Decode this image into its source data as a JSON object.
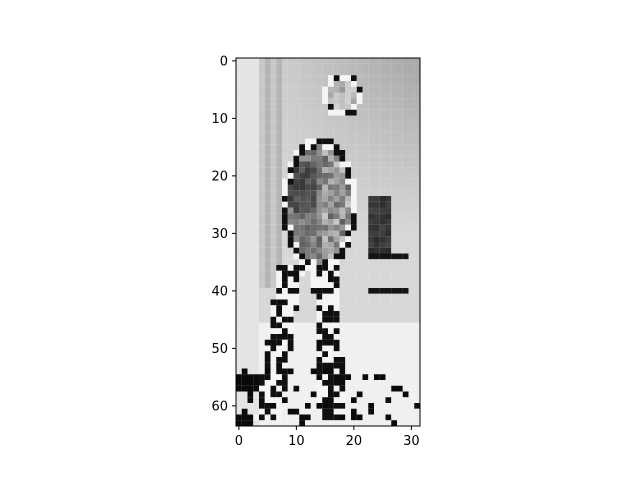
{
  "chart_data": {
    "type": "heatmap",
    "title": "",
    "xlabel": "",
    "ylabel": "",
    "colormap": "gray",
    "columns": 32,
    "rows": 64,
    "xlim": [
      -0.5,
      31.5
    ],
    "ylim": [
      63.5,
      -0.5
    ],
    "xticks": [
      0,
      10,
      20,
      30
    ],
    "xtick_labels": [
      "0",
      "10",
      "20",
      "30"
    ],
    "yticks": [
      0,
      10,
      20,
      30,
      40,
      50,
      60
    ],
    "ytick_labels": [
      "0",
      "10",
      "20",
      "30",
      "40",
      "50",
      "60"
    ],
    "grid": false,
    "legend": "none"
  }
}
